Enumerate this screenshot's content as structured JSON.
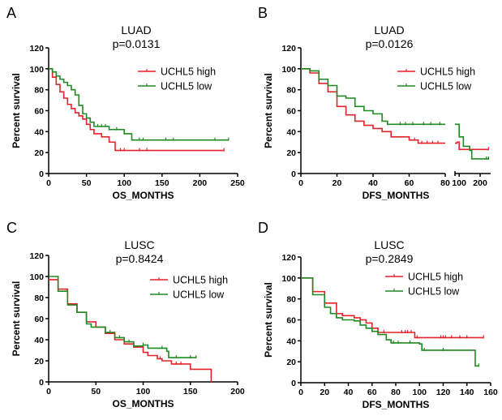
{
  "colors": {
    "high": "#e4222a",
    "low": "#1e8a22"
  },
  "chart_data": [
    {
      "panel": "A",
      "type": "line",
      "title": "LUAD",
      "subtitle": "p=0.0131",
      "xlabel": "OS_MONTHS",
      "ylabel": "Percent survival",
      "xlim": [
        0,
        250
      ],
      "ylim": [
        0,
        120
      ],
      "xticks": [
        0,
        50,
        100,
        150,
        200,
        250
      ],
      "yticks": [
        0,
        20,
        40,
        60,
        80,
        100,
        120
      ],
      "legend": "top-right",
      "series": [
        {
          "name": "UCHL5 high",
          "color": "high",
          "points": [
            [
              0,
              100
            ],
            [
              5,
              92
            ],
            [
              10,
              85
            ],
            [
              15,
              78
            ],
            [
              20,
              72
            ],
            [
              25,
              66
            ],
            [
              30,
              62
            ],
            [
              35,
              58
            ],
            [
              40,
              55
            ],
            [
              45,
              52
            ],
            [
              50,
              47
            ],
            [
              55,
              42
            ],
            [
              60,
              38
            ],
            [
              70,
              35
            ],
            [
              80,
              30
            ],
            [
              88,
              22
            ],
            [
              232,
              22
            ]
          ],
          "censored": [
            95,
            100,
            120,
            130,
            232
          ]
        },
        {
          "name": "UCHL5 low",
          "color": "low",
          "points": [
            [
              0,
              100
            ],
            [
              5,
              97
            ],
            [
              10,
              93
            ],
            [
              15,
              90
            ],
            [
              20,
              87
            ],
            [
              25,
              84
            ],
            [
              30,
              80
            ],
            [
              35,
              75
            ],
            [
              40,
              65
            ],
            [
              45,
              57
            ],
            [
              50,
              53
            ],
            [
              55,
              49
            ],
            [
              60,
              45
            ],
            [
              80,
              42
            ],
            [
              100,
              38
            ],
            [
              110,
              32
            ],
            [
              238,
              32
            ]
          ],
          "censored": [
            65,
            70,
            75,
            80,
            90,
            100,
            120,
            125,
            155,
            165,
            220,
            238
          ]
        }
      ]
    },
    {
      "panel": "B",
      "type": "line",
      "title": "LUAD",
      "subtitle": "p=0.0126",
      "xlabel": "DFS_MONTHS",
      "ylabel": "Percent survival",
      "xlim": [
        0,
        250
      ],
      "x_axis_break": [
        80,
        80
      ],
      "ylim": [
        0,
        120
      ],
      "xticks": [
        0,
        20,
        40,
        60,
        80,
        100,
        200
      ],
      "yticks": [
        0,
        20,
        40,
        60,
        80,
        100,
        120
      ],
      "legend": "top-right",
      "series": [
        {
          "name": "UCHL5 high",
          "color": "high",
          "points": [
            [
              0,
              100
            ],
            [
              5,
              96
            ],
            [
              10,
              86
            ],
            [
              15,
              78
            ],
            [
              20,
              64
            ],
            [
              25,
              56
            ],
            [
              30,
              50
            ],
            [
              35,
              46
            ],
            [
              40,
              43
            ],
            [
              45,
              40
            ],
            [
              50,
              35
            ],
            [
              60,
              32
            ],
            [
              65,
              29
            ],
            [
              80,
              29
            ],
            [
              90,
              30
            ],
            [
              100,
              23
            ],
            [
              240,
              23
            ]
          ],
          "censored": [
            63,
            67,
            70,
            73,
            76,
            240
          ]
        },
        {
          "name": "UCHL5 low",
          "color": "low",
          "points": [
            [
              0,
              100
            ],
            [
              5,
              98
            ],
            [
              10,
              90
            ],
            [
              15,
              84
            ],
            [
              20,
              74
            ],
            [
              25,
              72
            ],
            [
              30,
              64
            ],
            [
              35,
              60
            ],
            [
              40,
              57
            ],
            [
              45,
              50
            ],
            [
              48,
              47
            ],
            [
              80,
              47
            ],
            [
              90,
              47
            ],
            [
              100,
              35
            ],
            [
              120,
              26
            ],
            [
              150,
              22
            ],
            [
              160,
              14
            ],
            [
              240,
              14
            ]
          ],
          "censored": [
            55,
            58,
            62,
            68,
            72,
            77,
            230,
            240
          ]
        }
      ]
    },
    {
      "panel": "C",
      "type": "line",
      "title": "LUSC",
      "subtitle": "p=0.8424",
      "xlabel": "OS_MONTHS",
      "ylabel": "Percent survival",
      "xlim": [
        0,
        200
      ],
      "ylim": [
        0,
        120
      ],
      "xticks": [
        0,
        50,
        100,
        150,
        200
      ],
      "yticks": [
        0,
        20,
        40,
        60,
        80,
        100,
        120
      ],
      "legend": "top-right",
      "series": [
        {
          "name": "UCHL5 high",
          "color": "high",
          "points": [
            [
              0,
              97
            ],
            [
              10,
              88
            ],
            [
              20,
              74
            ],
            [
              30,
              66
            ],
            [
              40,
              57
            ],
            [
              50,
              52
            ],
            [
              60,
              46
            ],
            [
              70,
              40
            ],
            [
              80,
              36
            ],
            [
              90,
              33
            ],
            [
              100,
              28
            ],
            [
              105,
              25
            ],
            [
              115,
              22
            ],
            [
              120,
              20
            ],
            [
              130,
              17
            ],
            [
              150,
              12
            ],
            [
              172,
              12
            ],
            [
              172,
              0
            ]
          ],
          "censored": [
            118,
            135,
            140,
            150
          ]
        },
        {
          "name": "UCHL5 low",
          "color": "low",
          "points": [
            [
              0,
              100
            ],
            [
              10,
              86
            ],
            [
              20,
              73
            ],
            [
              30,
              66
            ],
            [
              40,
              55
            ],
            [
              45,
              52
            ],
            [
              60,
              47
            ],
            [
              70,
              42
            ],
            [
              80,
              38
            ],
            [
              90,
              34
            ],
            [
              100,
              35
            ],
            [
              105,
              32
            ],
            [
              125,
              29
            ],
            [
              127,
              23
            ],
            [
              156,
              23
            ]
          ],
          "censored": [
            60,
            65,
            75,
            85,
            100,
            120,
            135,
            150,
            156
          ]
        }
      ]
    },
    {
      "panel": "D",
      "type": "line",
      "title": "LUSC",
      "subtitle": "p=0.2849",
      "xlabel": "DFS_MONTHS",
      "ylabel": "Percent survival",
      "xlim": [
        0,
        160
      ],
      "ylim": [
        0,
        120
      ],
      "xticks": [
        0,
        20,
        40,
        60,
        80,
        100,
        120,
        140,
        160
      ],
      "yticks": [
        0,
        20,
        40,
        60,
        80,
        100,
        120
      ],
      "legend": "top-right",
      "series": [
        {
          "name": "UCHL5 high",
          "color": "high",
          "points": [
            [
              0,
              100
            ],
            [
              10,
              87
            ],
            [
              20,
              76
            ],
            [
              30,
              66
            ],
            [
              35,
              64
            ],
            [
              45,
              62
            ],
            [
              50,
              60
            ],
            [
              55,
              57
            ],
            [
              60,
              52
            ],
            [
              65,
              48
            ],
            [
              95,
              48
            ],
            [
              96,
              43
            ],
            [
              154,
              43
            ]
          ],
          "censored": [
            70,
            85,
            88,
            90,
            93,
            98,
            118,
            120,
            122,
            127,
            134,
            140,
            154
          ]
        },
        {
          "name": "UCHL5 low",
          "color": "low",
          "points": [
            [
              0,
              100
            ],
            [
              10,
              84
            ],
            [
              20,
              72
            ],
            [
              25,
              66
            ],
            [
              30,
              62
            ],
            [
              35,
              60
            ],
            [
              45,
              59
            ],
            [
              50,
              55
            ],
            [
              55,
              52
            ],
            [
              60,
              49
            ],
            [
              65,
              46
            ],
            [
              72,
              41
            ],
            [
              76,
              38
            ],
            [
              80,
              38
            ],
            [
              100,
              37
            ],
            [
              102,
              31
            ],
            [
              146,
              31
            ],
            [
              147,
              16
            ],
            [
              150,
              16
            ]
          ],
          "censored": [
            78,
            82,
            92,
            104,
            120,
            150
          ]
        }
      ]
    }
  ]
}
